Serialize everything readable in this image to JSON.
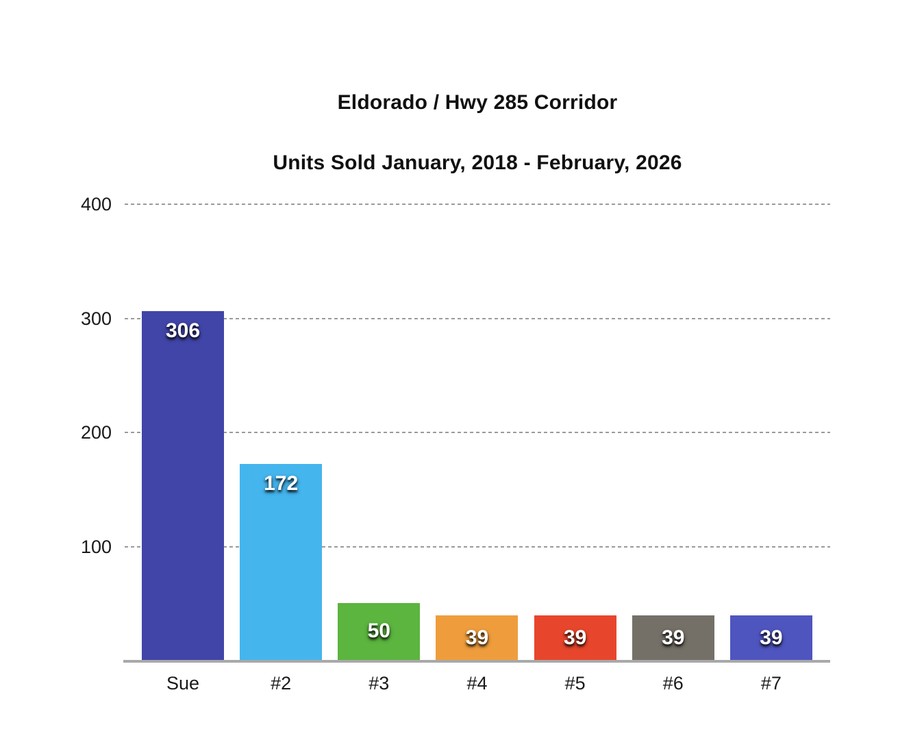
{
  "chart": {
    "title": "Eldorado / Hwy 285 Corridor",
    "subtitle": "Units Sold January, 2018 - February, 2026"
  },
  "chart_data": {
    "type": "bar",
    "title": "Eldorado / Hwy 285 Corridor",
    "subtitle": "Units Sold January, 2018 - February, 2026",
    "categories": [
      "Sue",
      "#2",
      "#3",
      "#4",
      "#5",
      "#6",
      "#7"
    ],
    "values": [
      306,
      172,
      50,
      39,
      39,
      39,
      39
    ],
    "bar_colors": [
      "#4145a8",
      "#45b5ee",
      "#5bb53e",
      "#ef9d3c",
      "#e8462c",
      "#747068",
      "#4f55bf"
    ],
    "value_label_color": "#ffffff",
    "xlabel": "",
    "ylabel": "",
    "y_ticks": [
      400,
      300,
      200,
      100
    ],
    "ylim": [
      0,
      400
    ],
    "grid": "horizontal-dotted",
    "gridline_color": "#9a9a9a",
    "axis_line_color": "#a9a9a9",
    "legend_position": "none"
  }
}
